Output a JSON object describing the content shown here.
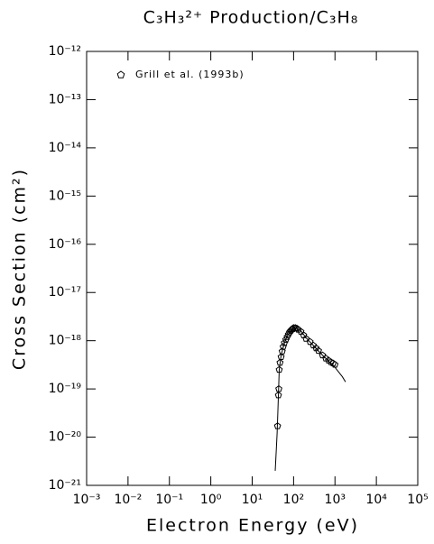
{
  "chart_data": {
    "type": "scatter",
    "title": "C₃H₃²⁺ Production/C₃H₈",
    "x_label": "Electron Energy (eV)",
    "y_label": "Cross Section (cm²)",
    "log_x": true,
    "log_y": true,
    "xlim": [
      0.001,
      100000
    ],
    "ylim": [
      1e-21,
      1e-12
    ],
    "xticks": [
      {
        "value": 0.001,
        "label": "10⁻³"
      },
      {
        "value": 0.01,
        "label": "10⁻²"
      },
      {
        "value": 0.1,
        "label": "10⁻¹"
      },
      {
        "value": 1,
        "label": "10⁰"
      },
      {
        "value": 10,
        "label": "10¹"
      },
      {
        "value": 100,
        "label": "10²"
      },
      {
        "value": 1000,
        "label": "10³"
      },
      {
        "value": 10000,
        "label": "10⁴"
      },
      {
        "value": 100000,
        "label": "10⁵"
      }
    ],
    "yticks": [
      {
        "value": 1e-21,
        "label": "10⁻²¹"
      },
      {
        "value": 1e-20,
        "label": "10⁻²⁰"
      },
      {
        "value": 1e-19,
        "label": "10⁻¹⁹"
      },
      {
        "value": 1e-18,
        "label": "10⁻¹⁸"
      },
      {
        "value": 1e-17,
        "label": "10⁻¹⁷"
      },
      {
        "value": 1e-16,
        "label": "10⁻¹⁶"
      },
      {
        "value": 1e-15,
        "label": "10⁻¹⁵"
      },
      {
        "value": 1e-14,
        "label": "10⁻¹⁴"
      },
      {
        "value": 1e-13,
        "label": "10⁻¹³"
      },
      {
        "value": 1e-12,
        "label": "10⁻¹²"
      }
    ],
    "legend": "upper-left",
    "series": [
      {
        "name": "Grill et al. (1993b)",
        "color": "#000000",
        "marker": "pentagon",
        "x": [
          41,
          43,
          44,
          45,
          47,
          50,
          53,
          56,
          60,
          65,
          70,
          75,
          80,
          85,
          90,
          95,
          100,
          110,
          120,
          130,
          150,
          175,
          200,
          250,
          300,
          350,
          400,
          500,
          600,
          700,
          800,
          900,
          1000
        ],
        "values": [
          1.7e-20,
          7.4e-20,
          1e-19,
          2.5e-19,
          3.5e-19,
          4.6e-19,
          6e-19,
          7.5e-19,
          9e-19,
          1.05e-18,
          1.2e-18,
          1.35e-18,
          1.5e-18,
          1.6e-18,
          1.7e-18,
          1.75e-18,
          1.85e-18,
          1.85e-18,
          1.8e-18,
          1.7e-18,
          1.55e-18,
          1.3e-18,
          1.1e-18,
          9.5e-19,
          8e-19,
          7e-19,
          6.2e-19,
          5e-19,
          4.3e-19,
          3.9e-19,
          3.6e-19,
          3.4e-19,
          3.2e-19
        ]
      },
      {
        "color": "#000000",
        "line": true,
        "x": [
          36,
          38,
          40,
          42,
          45,
          50,
          60,
          70,
          80,
          100,
          120,
          150,
          200,
          300,
          500,
          700,
          1000,
          1500,
          1800
        ],
        "values": [
          2e-21,
          5e-21,
          1.2e-20,
          4e-20,
          2.5e-19,
          5e-19,
          9e-19,
          1.25e-18,
          1.5e-18,
          1.8e-18,
          1.8e-18,
          1.6e-18,
          1.15e-18,
          8e-19,
          5e-19,
          3.8e-19,
          2.8e-19,
          1.8e-19,
          1.4e-19
        ]
      }
    ]
  }
}
